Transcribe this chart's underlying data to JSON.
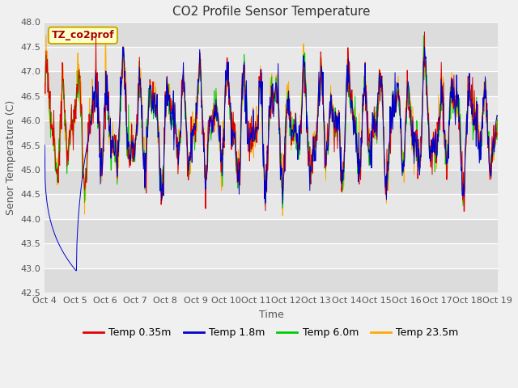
{
  "title": "CO2 Profile Sensor Temperature",
  "ylabel": "Senor Temperature (C)",
  "xlabel": "Time",
  "ylim": [
    42.5,
    48.0
  ],
  "yticks": [
    42.5,
    43.0,
    43.5,
    44.0,
    44.5,
    45.0,
    45.5,
    46.0,
    46.5,
    47.0,
    47.5,
    48.0
  ],
  "legend_label": "TZ_co2prof",
  "legend_box_color": "#ffffcc",
  "legend_box_edge": "#ccaa00",
  "colors": {
    "red": "#dd0000",
    "blue": "#0000cc",
    "green": "#00cc00",
    "orange": "#ffaa00"
  },
  "series_labels": [
    "Temp 0.35m",
    "Temp 1.8m",
    "Temp 6.0m",
    "Temp 23.5m"
  ],
  "fig_facecolor": "#f0f0f0",
  "plot_bg_color": "#e8e8e8",
  "band_color_light": "#ebebeb",
  "band_color_dark": "#d8d8d8",
  "title_fontsize": 11,
  "axis_fontsize": 9,
  "tick_fontsize": 8,
  "n_points": 1000,
  "seed": 42,
  "x_tick_labels": [
    "Oct 4",
    "Oct 5",
    "Oct 6",
    "Oct 7",
    "Oct 8",
    "Oct 9",
    "Oct 10",
    "Oct 11",
    "Oct 12",
    "Oct 13",
    "Oct 14",
    "Oct 15",
    "Oct 16",
    "Oct 17",
    "Oct 18",
    "Oct 19"
  ]
}
